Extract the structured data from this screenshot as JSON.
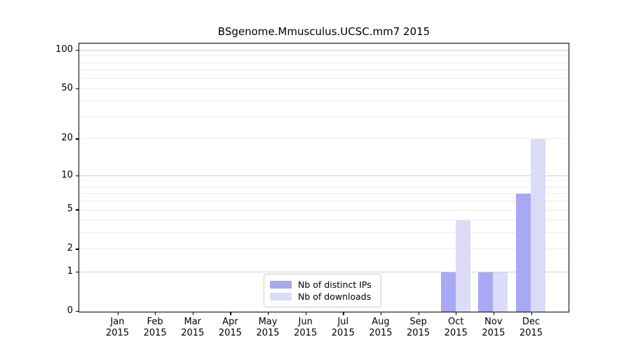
{
  "title": "BSgenome.Mmusculus.UCSC.mm7 2015",
  "chart_data": {
    "type": "bar",
    "title": "BSgenome.Mmusculus.UCSC.mm7 2015",
    "xlabel": "",
    "ylabel": "",
    "categories": [
      "Jan 2015",
      "Feb 2015",
      "Mar 2015",
      "Apr 2015",
      "May 2015",
      "Jun 2015",
      "Jul 2015",
      "Aug 2015",
      "Sep 2015",
      "Oct 2015",
      "Nov 2015",
      "Dec 2015"
    ],
    "series": [
      {
        "name": "Nb of distinct IPs",
        "color": "#a8a8f5",
        "values": [
          0,
          0,
          0,
          0,
          0,
          0,
          0,
          0,
          0,
          1,
          1,
          7
        ]
      },
      {
        "name": "Nb of downloads",
        "color": "#dcdcf8",
        "values": [
          0,
          0,
          0,
          0,
          0,
          0,
          0,
          0,
          0,
          4,
          1,
          20
        ]
      }
    ],
    "y_scale": "log1p",
    "y_max": 113,
    "y_ticks": [
      0,
      1,
      2,
      5,
      10,
      20,
      50,
      100
    ],
    "grid_minor": [
      2,
      3,
      4,
      5,
      6,
      7,
      8,
      9,
      20,
      30,
      40,
      50,
      60,
      70,
      80,
      90
    ],
    "grid_major": [
      1,
      10,
      100
    ],
    "legend_position": "lower center",
    "grid": true,
    "colors": {
      "grid_minor": "#ececec",
      "grid_major": "#d2d2d2",
      "axis": "#000000",
      "background": "#ffffff"
    }
  }
}
